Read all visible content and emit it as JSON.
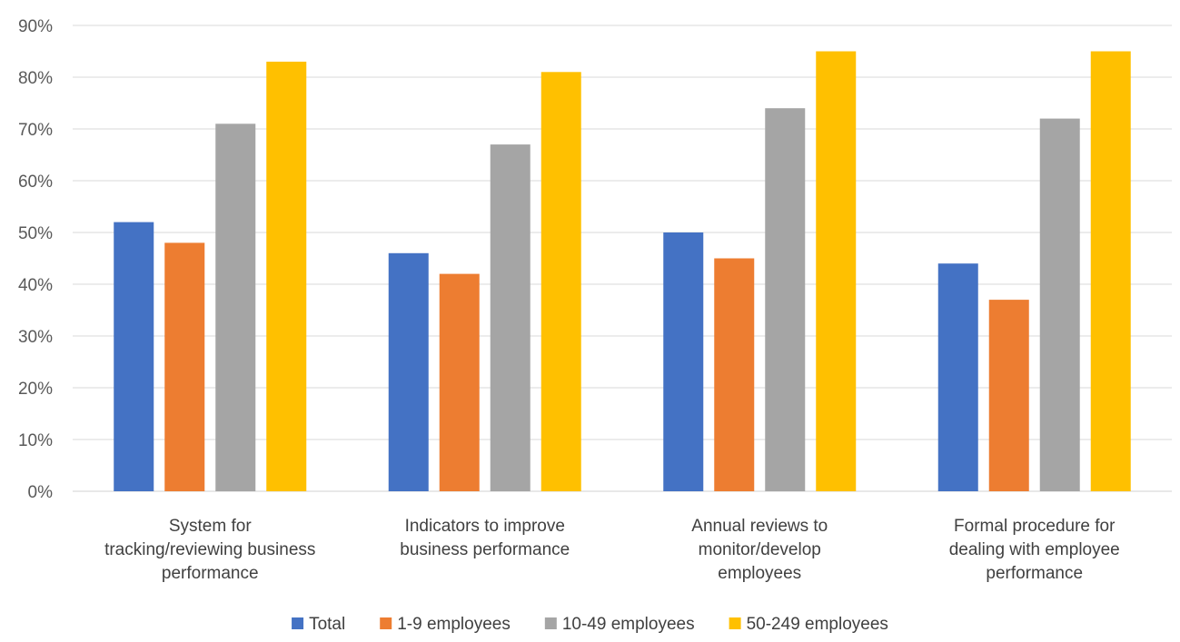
{
  "chart_data": {
    "type": "bar",
    "categories": [
      [
        "System for",
        "tracking/reviewing business",
        "performance"
      ],
      [
        "Indicators to improve",
        "business performance"
      ],
      [
        "Annual reviews to",
        "monitor/develop",
        "employees"
      ],
      [
        "Formal procedure for",
        "dealing with employee",
        "performance"
      ]
    ],
    "series": [
      {
        "name": "Total",
        "color": "#4472C4",
        "values": [
          52,
          46,
          50,
          44
        ]
      },
      {
        "name": "1-9 employees",
        "color": "#ED7D31",
        "values": [
          48,
          42,
          45,
          37
        ]
      },
      {
        "name": "10-49 employees",
        "color": "#A5A5A5",
        "values": [
          71,
          67,
          74,
          72
        ]
      },
      {
        "name": "50-249 employees",
        "color": "#FFC000",
        "values": [
          83,
          81,
          85,
          85
        ]
      }
    ],
    "ylim": [
      0,
      90
    ],
    "yticks": [
      "0%",
      "10%",
      "20%",
      "30%",
      "40%",
      "50%",
      "60%",
      "70%",
      "80%",
      "90%"
    ],
    "grid": true,
    "legend_position": "bottom"
  }
}
